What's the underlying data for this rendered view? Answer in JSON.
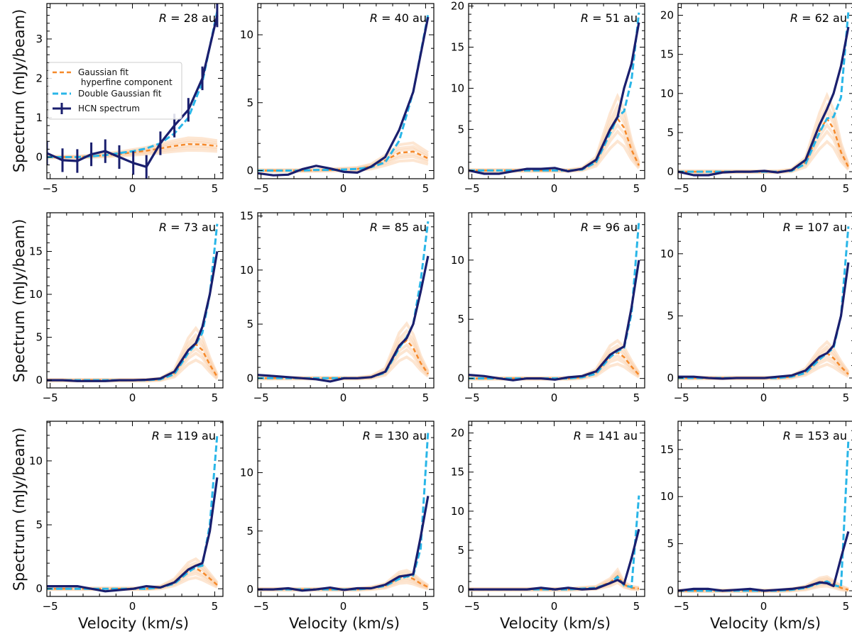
{
  "figure": {
    "ylabel": "Spectrum (mJy/beam)",
    "xlabel": "Velocity (km/s)",
    "legend": {
      "placement": "left, first panel",
      "entries": [
        "Gaussian fit\n hyperfine component",
        "Double Gaussian fit",
        "HCN spectrum"
      ]
    },
    "colors": {
      "hcn": "#1a1f6e",
      "double": "#29b6e8",
      "gauss": "#f5892a",
      "gauss_light": "#fbd2ad"
    }
  },
  "chart_data": [
    {
      "type": "line",
      "title": "R = 28 au",
      "radius": "28",
      "xlim": [
        -5.2,
        5.5
      ],
      "ylim": [
        -0.55,
        3.9
      ],
      "yticks": [
        0,
        1,
        2,
        3
      ],
      "xticks": [
        -5,
        0,
        5
      ],
      "x": [
        -5.2,
        -4.25,
        -3.35,
        -2.5,
        -1.65,
        -0.8,
        0.05,
        0.85,
        1.7,
        2.55,
        3.4,
        4.25,
        5.15
      ],
      "series": [
        {
          "name": "HCN spectrum",
          "values": [
            0.1,
            -0.08,
            -0.1,
            0.07,
            0.15,
            0.0,
            -0.15,
            -0.25,
            0.35,
            0.8,
            1.2,
            2.0,
            3.6
          ],
          "errorbar": 0.3
        },
        {
          "name": "Double Gaussian fit",
          "values": [
            0.0,
            0.0,
            0.0,
            0.02,
            0.05,
            0.1,
            0.15,
            0.22,
            0.35,
            0.6,
            1.0,
            1.9,
            3.7
          ]
        },
        {
          "name": "Gaussian fit hyperfine component",
          "values": [
            0.0,
            0.0,
            0.0,
            0.02,
            0.05,
            0.08,
            0.12,
            0.16,
            0.22,
            0.28,
            0.33,
            0.32,
            0.28
          ]
        }
      ]
    },
    {
      "type": "line",
      "title": "R = 40 au",
      "radius": "40",
      "xlim": [
        -5.2,
        5.5
      ],
      "ylim": [
        -0.6,
        12.3
      ],
      "yticks": [
        0,
        5,
        10
      ],
      "xticks": [
        -5,
        0,
        5
      ],
      "x": [
        -5.2,
        -4.25,
        -3.35,
        -2.5,
        -1.65,
        -0.8,
        0.05,
        0.85,
        1.7,
        2.55,
        3.4,
        4.25,
        5.15
      ],
      "series": [
        {
          "name": "HCN spectrum",
          "values": [
            -0.2,
            -0.35,
            -0.3,
            0.1,
            0.35,
            0.15,
            -0.1,
            -0.15,
            0.3,
            1.0,
            3.0,
            5.8,
            11.3
          ]
        },
        {
          "name": "Double Gaussian fit",
          "values": [
            0.0,
            0.0,
            0.0,
            0.0,
            0.05,
            0.05,
            0.08,
            0.12,
            0.25,
            0.6,
            2.2,
            5.8,
            11.5
          ]
        },
        {
          "name": "Gaussian fit hyperfine component",
          "values": [
            0.0,
            0.0,
            0.0,
            0.0,
            0.02,
            0.05,
            0.08,
            0.12,
            0.3,
            0.75,
            1.3,
            1.4,
            0.9
          ]
        }
      ]
    },
    {
      "type": "line",
      "title": "R = 51 au",
      "radius": "51",
      "xlim": [
        -5.2,
        5.5
      ],
      "ylim": [
        -1.0,
        20.3
      ],
      "yticks": [
        0,
        5,
        10,
        15,
        20
      ],
      "xticks": [
        -5,
        0,
        5
      ],
      "x": [
        -5.2,
        -4.25,
        -3.35,
        -2.5,
        -1.65,
        -0.8,
        0.05,
        0.85,
        1.7,
        2.55,
        3.4,
        3.85,
        4.25,
        4.7,
        5.15
      ],
      "series": [
        {
          "name": "HCN spectrum",
          "values": [
            0.0,
            -0.4,
            -0.4,
            -0.1,
            0.2,
            0.2,
            0.3,
            -0.1,
            0.2,
            1.3,
            5.0,
            6.5,
            10.0,
            13.0,
            18.0
          ]
        },
        {
          "name": "Double Gaussian fit",
          "values": [
            0.0,
            0.0,
            0.0,
            0.0,
            0.0,
            0.0,
            0.0,
            0.0,
            0.1,
            1.0,
            4.5,
            6.5,
            7.2,
            11.0,
            19.2
          ]
        },
        {
          "name": "Gaussian fit hyperfine component",
          "values": [
            0.0,
            0.0,
            0.0,
            0.0,
            0.0,
            0.0,
            0.0,
            0.0,
            0.15,
            1.1,
            4.8,
            6.3,
            5.2,
            2.5,
            0.6
          ]
        }
      ]
    },
    {
      "type": "line",
      "title": "R = 62 au",
      "radius": "62",
      "xlim": [
        -5.2,
        5.5
      ],
      "ylim": [
        -0.9,
        21.5
      ],
      "yticks": [
        0,
        5,
        10,
        15,
        20
      ],
      "xticks": [
        -5,
        0,
        5
      ],
      "x": [
        -5.2,
        -4.25,
        -3.35,
        -2.5,
        -1.65,
        -0.8,
        0.05,
        0.85,
        1.7,
        2.55,
        3.4,
        3.85,
        4.25,
        4.7,
        5.15
      ],
      "series": [
        {
          "name": "HCN spectrum",
          "values": [
            0.0,
            -0.45,
            -0.45,
            -0.1,
            0.0,
            0.0,
            0.1,
            -0.1,
            0.2,
            1.5,
            6.0,
            8.0,
            10.0,
            13.5,
            18.5
          ]
        },
        {
          "name": "Double Gaussian fit",
          "values": [
            0.0,
            0.0,
            0.0,
            0.0,
            0.0,
            0.0,
            0.0,
            0.0,
            0.1,
            1.0,
            5.0,
            6.8,
            7.0,
            9.5,
            20.5
          ]
        },
        {
          "name": "Gaussian fit hyperfine component",
          "values": [
            0.0,
            0.0,
            0.0,
            0.0,
            0.0,
            0.0,
            0.0,
            0.0,
            0.15,
            1.2,
            5.2,
            6.8,
            5.5,
            2.5,
            0.6
          ]
        }
      ]
    },
    {
      "type": "line",
      "title": "R = 73 au",
      "radius": "73",
      "xlim": [
        -5.2,
        5.5
      ],
      "ylim": [
        -0.9,
        19.5
      ],
      "yticks": [
        0,
        5,
        10,
        15
      ],
      "xticks": [
        -5,
        0,
        5
      ],
      "x": [
        -5.2,
        -4.25,
        -3.35,
        -2.5,
        -1.65,
        -0.8,
        0.05,
        0.85,
        1.7,
        2.55,
        3.4,
        3.85,
        4.25,
        4.7,
        5.15
      ],
      "series": [
        {
          "name": "HCN spectrum",
          "values": [
            0.0,
            0.0,
            -0.1,
            -0.1,
            -0.1,
            0.0,
            0.0,
            0.05,
            0.2,
            1.0,
            3.5,
            4.3,
            6.2,
            10.0,
            15.0
          ]
        },
        {
          "name": "Double Gaussian fit",
          "values": [
            0.0,
            0.0,
            0.0,
            0.0,
            0.0,
            0.0,
            0.0,
            0.0,
            0.1,
            0.7,
            3.2,
            4.2,
            5.5,
            10.0,
            18.2
          ]
        },
        {
          "name": "Gaussian fit hyperfine component",
          "values": [
            0.0,
            0.0,
            0.0,
            0.0,
            0.0,
            0.0,
            0.0,
            0.0,
            0.1,
            0.8,
            3.4,
            4.2,
            3.5,
            1.8,
            0.4
          ]
        }
      ]
    },
    {
      "type": "line",
      "title": "R = 85 au",
      "radius": "85",
      "xlim": [
        -5.2,
        5.5
      ],
      "ylim": [
        -0.9,
        15.3
      ],
      "yticks": [
        0,
        5,
        10,
        15
      ],
      "xticks": [
        -5,
        0,
        5
      ],
      "x": [
        -5.2,
        -4.25,
        -3.35,
        -2.5,
        -1.65,
        -0.8,
        0.05,
        0.85,
        1.7,
        2.55,
        3.4,
        3.85,
        4.25,
        4.7,
        5.15
      ],
      "series": [
        {
          "name": "HCN spectrum",
          "values": [
            0.3,
            0.2,
            0.1,
            0.0,
            -0.1,
            -0.3,
            0.0,
            0.0,
            0.1,
            0.6,
            3.0,
            3.7,
            5.0,
            8.0,
            11.3
          ]
        },
        {
          "name": "Double Gaussian fit",
          "values": [
            0.0,
            0.0,
            0.0,
            0.0,
            0.0,
            0.0,
            0.0,
            0.0,
            0.1,
            0.5,
            2.8,
            3.8,
            5.0,
            9.0,
            14.5
          ]
        },
        {
          "name": "Gaussian fit hyperfine component",
          "values": [
            0.0,
            0.0,
            0.0,
            0.0,
            0.0,
            0.0,
            0.0,
            0.0,
            0.1,
            0.6,
            2.9,
            3.5,
            2.8,
            1.4,
            0.4
          ]
        }
      ]
    },
    {
      "type": "line",
      "title": "R = 96 au",
      "radius": "96",
      "xlim": [
        -5.2,
        5.5
      ],
      "ylim": [
        -0.8,
        14.0
      ],
      "yticks": [
        0,
        5,
        10
      ],
      "xticks": [
        -5,
        0,
        5
      ],
      "x": [
        -5.2,
        -4.25,
        -3.35,
        -2.5,
        -1.65,
        -0.8,
        0.05,
        0.85,
        1.7,
        2.55,
        3.4,
        3.85,
        4.25,
        4.7,
        5.15
      ],
      "series": [
        {
          "name": "HCN spectrum",
          "values": [
            0.3,
            0.2,
            0.0,
            -0.15,
            0.0,
            0.0,
            -0.1,
            0.1,
            0.2,
            0.6,
            2.0,
            2.4,
            2.7,
            6.0,
            10.0
          ]
        },
        {
          "name": "Double Gaussian fit",
          "values": [
            0.0,
            0.0,
            0.0,
            0.0,
            0.0,
            0.0,
            0.0,
            0.0,
            0.1,
            0.4,
            1.8,
            2.3,
            2.6,
            5.5,
            13.3
          ]
        },
        {
          "name": "Gaussian fit hyperfine component",
          "values": [
            0.0,
            0.0,
            0.0,
            0.0,
            0.0,
            0.0,
            0.0,
            0.0,
            0.1,
            0.5,
            1.9,
            2.2,
            1.8,
            1.0,
            0.3
          ]
        }
      ]
    },
    {
      "type": "line",
      "title": "R = 107 au",
      "radius": "107",
      "xlim": [
        -5.2,
        5.5
      ],
      "ylim": [
        -0.8,
        13.3
      ],
      "yticks": [
        0,
        5,
        10
      ],
      "xticks": [
        -5,
        0,
        5
      ],
      "x": [
        -5.2,
        -4.25,
        -3.35,
        -2.5,
        -1.65,
        -0.8,
        0.05,
        0.85,
        1.7,
        2.55,
        3.4,
        3.85,
        4.25,
        4.7,
        5.15
      ],
      "series": [
        {
          "name": "HCN spectrum",
          "values": [
            0.1,
            0.1,
            0.0,
            -0.05,
            0.0,
            0.0,
            0.0,
            0.1,
            0.2,
            0.6,
            1.7,
            2.0,
            2.6,
            5.0,
            9.3
          ]
        },
        {
          "name": "Double Gaussian fit",
          "values": [
            0.0,
            0.0,
            0.0,
            0.0,
            0.0,
            0.0,
            0.0,
            0.0,
            0.1,
            0.4,
            1.5,
            2.0,
            2.4,
            5.0,
            12.2
          ]
        },
        {
          "name": "Gaussian fit hyperfine component",
          "values": [
            0.0,
            0.0,
            0.0,
            0.0,
            0.0,
            0.0,
            0.0,
            0.0,
            0.1,
            0.5,
            1.6,
            2.0,
            1.6,
            0.9,
            0.3
          ]
        }
      ]
    },
    {
      "type": "line",
      "title": "R = 119 au",
      "radius": "119",
      "xlim": [
        -5.2,
        5.5
      ],
      "ylim": [
        -0.6,
        13.1
      ],
      "yticks": [
        0,
        5,
        10
      ],
      "xticks": [
        -5,
        0,
        5
      ],
      "x": [
        -5.2,
        -4.25,
        -3.35,
        -2.5,
        -1.65,
        -0.8,
        0.05,
        0.85,
        1.7,
        2.55,
        3.4,
        3.85,
        4.25,
        4.7,
        5.15
      ],
      "series": [
        {
          "name": "HCN spectrum",
          "values": [
            0.2,
            0.2,
            0.2,
            0.0,
            -0.2,
            -0.1,
            0.0,
            0.2,
            0.1,
            0.5,
            1.5,
            1.8,
            2.0,
            4.5,
            8.7
          ]
        },
        {
          "name": "Double Gaussian fit",
          "values": [
            0.0,
            0.0,
            0.0,
            0.0,
            0.0,
            0.0,
            0.0,
            0.0,
            0.1,
            0.4,
            1.3,
            1.7,
            1.8,
            5.0,
            12.0
          ]
        },
        {
          "name": "Gaussian fit hyperfine component",
          "values": [
            0.0,
            0.0,
            0.0,
            0.0,
            0.0,
            0.0,
            0.0,
            0.0,
            0.1,
            0.5,
            1.4,
            1.6,
            1.3,
            0.8,
            0.3
          ]
        }
      ]
    },
    {
      "type": "line",
      "title": "R = 130 au",
      "radius": "130",
      "xlim": [
        -5.2,
        5.5
      ],
      "ylim": [
        -0.6,
        14.4
      ],
      "yticks": [
        0,
        5,
        10
      ],
      "xticks": [
        -5,
        0,
        5
      ],
      "x": [
        -5.2,
        -4.25,
        -3.35,
        -2.5,
        -1.65,
        -0.8,
        0.05,
        0.85,
        1.7,
        2.55,
        3.4,
        3.85,
        4.25,
        4.7,
        5.15
      ],
      "series": [
        {
          "name": "HCN spectrum",
          "values": [
            0.0,
            0.0,
            0.1,
            -0.1,
            0.0,
            0.15,
            -0.05,
            0.1,
            0.1,
            0.4,
            1.1,
            1.2,
            1.3,
            4.5,
            8.0
          ]
        },
        {
          "name": "Double Gaussian fit",
          "values": [
            0.0,
            0.0,
            0.0,
            0.0,
            0.0,
            0.0,
            0.0,
            0.0,
            0.1,
            0.3,
            0.9,
            1.1,
            1.2,
            3.5,
            13.5
          ]
        },
        {
          "name": "Gaussian fit hyperfine component",
          "values": [
            0.0,
            0.0,
            0.0,
            0.0,
            0.0,
            0.0,
            0.0,
            0.0,
            0.1,
            0.3,
            1.0,
            1.1,
            0.9,
            0.5,
            0.2
          ]
        }
      ]
    },
    {
      "type": "line",
      "title": "R = 141 au",
      "radius": "141",
      "xlim": [
        -5.2,
        5.5
      ],
      "ylim": [
        -0.9,
        21.5
      ],
      "yticks": [
        0,
        5,
        10,
        15,
        20
      ],
      "xticks": [
        -5,
        0,
        5
      ],
      "x": [
        -5.2,
        -4.25,
        -3.35,
        -2.5,
        -1.65,
        -0.8,
        0.05,
        0.85,
        1.7,
        2.55,
        3.4,
        3.85,
        4.25,
        4.7,
        5.15
      ],
      "series": [
        {
          "name": "HCN spectrum",
          "values": [
            0.0,
            0.0,
            0.0,
            0.0,
            0.0,
            0.2,
            0.0,
            0.2,
            0.0,
            0.1,
            0.8,
            1.2,
            0.7,
            4.0,
            7.7
          ]
        },
        {
          "name": "Double Gaussian fit",
          "values": [
            0.0,
            0.0,
            0.0,
            0.0,
            0.0,
            0.0,
            0.0,
            0.0,
            0.1,
            0.2,
            0.8,
            1.6,
            0.5,
            0.3,
            12.0
          ]
        },
        {
          "name": "Gaussian fit hyperfine component",
          "values": [
            0.0,
            0.0,
            0.0,
            0.0,
            0.0,
            0.0,
            0.0,
            0.0,
            0.1,
            0.2,
            0.9,
            1.7,
            0.6,
            0.2,
            0.1
          ]
        }
      ]
    },
    {
      "type": "line",
      "title": "R = 153 au",
      "radius": "153",
      "xlim": [
        -5.2,
        5.5
      ],
      "ylim": [
        -0.6,
        18.0
      ],
      "yticks": [
        0,
        5,
        10,
        15
      ],
      "xticks": [
        -5,
        0,
        5
      ],
      "x": [
        -5.2,
        -4.25,
        -3.35,
        -2.5,
        -1.65,
        -0.8,
        0.05,
        0.85,
        1.7,
        2.55,
        3.4,
        3.85,
        4.25,
        4.7,
        5.15
      ],
      "series": [
        {
          "name": "HCN spectrum",
          "values": [
            0.0,
            0.2,
            0.2,
            0.0,
            0.1,
            0.2,
            0.0,
            0.1,
            0.2,
            0.4,
            0.9,
            0.8,
            0.5,
            3.5,
            6.3
          ]
        },
        {
          "name": "Double Gaussian fit",
          "values": [
            0.0,
            0.0,
            0.0,
            0.0,
            0.0,
            0.0,
            0.0,
            0.0,
            0.1,
            0.3,
            0.8,
            1.0,
            0.6,
            0.4,
            16.0
          ]
        },
        {
          "name": "Gaussian fit hyperfine component",
          "values": [
            0.0,
            0.0,
            0.0,
            0.0,
            0.0,
            0.0,
            0.0,
            0.0,
            0.1,
            0.3,
            0.9,
            1.0,
            0.7,
            0.3,
            0.1
          ]
        }
      ]
    }
  ]
}
